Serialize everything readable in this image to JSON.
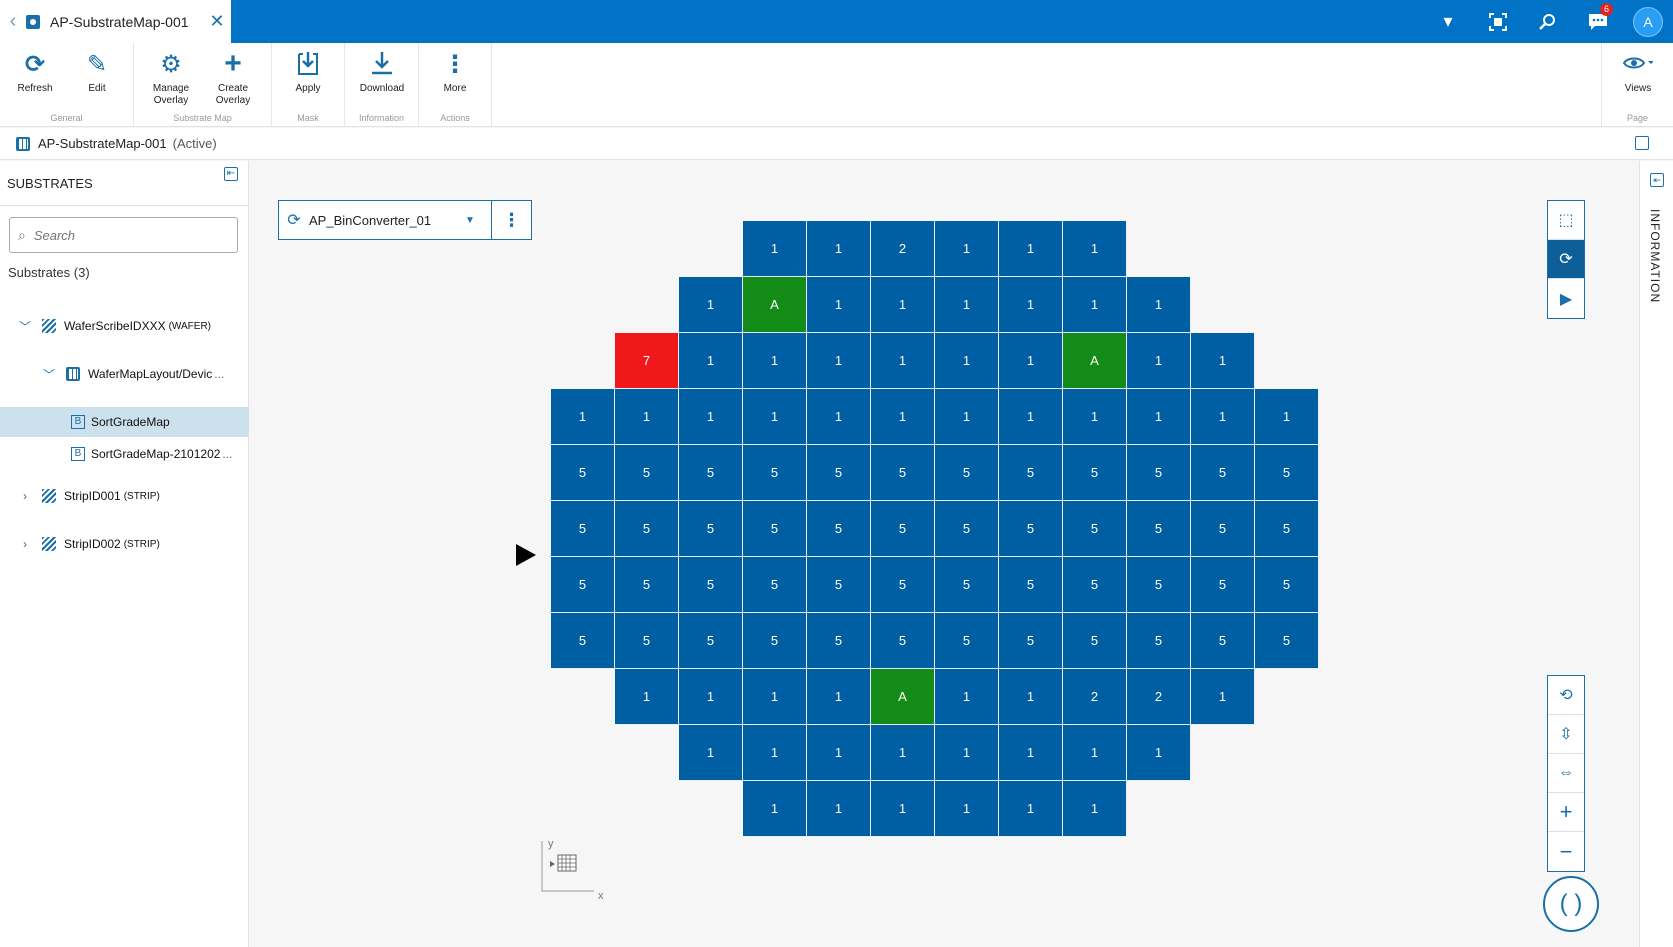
{
  "tab": {
    "title": "AP-SubstrateMap-001"
  },
  "topbar": {
    "notification_count": "6",
    "avatar_initial": "A"
  },
  "ribbon": {
    "groups": {
      "general": "General",
      "substrate_map": "Substrate Map",
      "mask": "Mask",
      "information": "Information",
      "actions": "Actions",
      "page": "Page"
    },
    "buttons": {
      "refresh": "Refresh",
      "edit": "Edit",
      "manage_overlay_1": "Manage",
      "manage_overlay_2": "Overlay",
      "create_overlay_1": "Create",
      "create_overlay_2": "Overlay",
      "apply": "Apply",
      "download": "Download",
      "more": "More",
      "views": "Views"
    }
  },
  "breadcrumb": {
    "name": "AP-SubstrateMap-001",
    "state": "(Active)"
  },
  "sidebar": {
    "title": "SUBSTRATES",
    "search_placeholder": "Search",
    "count": "Substrates (3)",
    "tree": {
      "wafer": {
        "name": "WaferScribeIDXXX",
        "tag": "(WAFER)"
      },
      "layout": {
        "name": "WaferMapLayout/Devic"
      },
      "map1": {
        "name": "SortGradeMap"
      },
      "map2": {
        "name": "SortGradeMap-2101202"
      },
      "strip1": {
        "name": "StripID001",
        "tag": "(STRIP)"
      },
      "strip2": {
        "name": "StripID002",
        "tag": "(STRIP)"
      }
    }
  },
  "converter": {
    "name": "AP_BinConverter_01"
  },
  "info_panel": {
    "label": "INFORMATION"
  },
  "axes": {
    "x": "x",
    "y": "y"
  },
  "colors": {
    "die_default": "#005fa2",
    "die_A": "#128c16",
    "die_7": "#f0181a",
    "accent": "#0073c6"
  },
  "wafer_map": {
    "columns": 12,
    "rows": [
      {
        "start": 3,
        "cells": [
          "1",
          "1",
          "2",
          "1",
          "1",
          "1"
        ]
      },
      {
        "start": 2,
        "cells": [
          "1",
          "A",
          "1",
          "1",
          "1",
          "1",
          "1",
          "1"
        ]
      },
      {
        "start": 1,
        "cells": [
          "7",
          "1",
          "1",
          "1",
          "1",
          "1",
          "1",
          "A",
          "1",
          "1"
        ]
      },
      {
        "start": 0,
        "cells": [
          "1",
          "1",
          "1",
          "1",
          "1",
          "1",
          "1",
          "1",
          "1",
          "1",
          "1",
          "1"
        ]
      },
      {
        "start": 0,
        "cells": [
          "5",
          "5",
          "5",
          "5",
          "5",
          "5",
          "5",
          "5",
          "5",
          "5",
          "5",
          "5"
        ]
      },
      {
        "start": 0,
        "cells": [
          "5",
          "5",
          "5",
          "5",
          "5",
          "5",
          "5",
          "5",
          "5",
          "5",
          "5",
          "5"
        ]
      },
      {
        "start": 0,
        "cells": [
          "5",
          "5",
          "5",
          "5",
          "5",
          "5",
          "5",
          "5",
          "5",
          "5",
          "5",
          "5"
        ]
      },
      {
        "start": 0,
        "cells": [
          "5",
          "5",
          "5",
          "5",
          "5",
          "5",
          "5",
          "5",
          "5",
          "5",
          "5",
          "5"
        ]
      },
      {
        "start": 1,
        "cells": [
          "1",
          "1",
          "1",
          "1",
          "A",
          "1",
          "1",
          "2",
          "2",
          "1"
        ]
      },
      {
        "start": 2,
        "cells": [
          "1",
          "1",
          "1",
          "1",
          "1",
          "1",
          "1",
          "1"
        ]
      },
      {
        "start": 3,
        "cells": [
          "1",
          "1",
          "1",
          "1",
          "1",
          "1"
        ]
      }
    ]
  }
}
